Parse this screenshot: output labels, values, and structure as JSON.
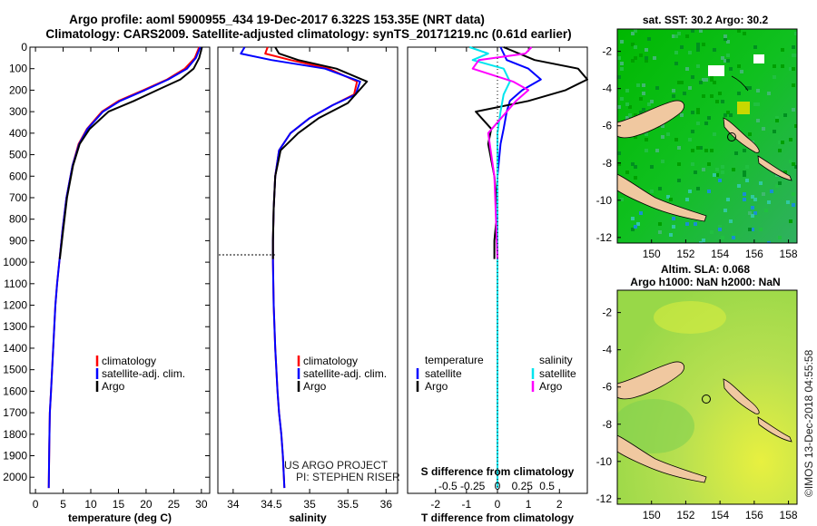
{
  "header": {
    "title_line1": "Argo profile: aoml 5900955_434 19-Dec-2017 6.322S 153.35E (NRT data)",
    "title_line2": "Climatology: CARS2009. Satellite-adjusted climatology: synTS_20171219.nc (0.61d earlier)"
  },
  "credits": {
    "project": "US ARGO PROJECT",
    "pi": "PI: STEPHEN RISER",
    "imos_stamp": "©IMOS 13-Dec-2018 04:55:58"
  },
  "colors": {
    "climatology": "#ff0000",
    "satellite": "#0000ff",
    "argo": "#000000",
    "sat_salinity": "#00e5ee",
    "argo_salinity": "#ff00ff",
    "land": "#f0c8a0",
    "sst_sea": "#00c000",
    "sla_sea": "#b0e050"
  },
  "chart_data": [
    {
      "type": "line",
      "panel": "temperature",
      "xlabel": "temperature (deg C)",
      "ylabel": "",
      "xlim": [
        -1,
        31.5
      ],
      "ylim": [
        2075,
        0
      ],
      "xticks": [
        0,
        5,
        10,
        15,
        20,
        25,
        30
      ],
      "yticks": [
        0,
        100,
        200,
        300,
        400,
        500,
        600,
        700,
        800,
        900,
        1000,
        1100,
        1200,
        1300,
        1400,
        1500,
        1600,
        1700,
        1800,
        1900,
        2000
      ],
      "legend": [
        "climatology",
        "satellite-adj. clim.",
        "Argo"
      ],
      "series": [
        {
          "name": "climatology",
          "color": "#ff0000",
          "x": [
            29.6,
            28.8,
            27.0,
            23.8,
            19.5,
            15.0,
            12.0,
            9.3,
            7.8,
            6.7,
            5.6,
            4.9,
            4.3,
            3.9,
            3.6,
            3.4,
            3.2,
            3.0,
            2.8,
            2.6,
            2.5,
            2.4
          ],
          "y": [
            0,
            50,
            100,
            150,
            200,
            250,
            300,
            380,
            450,
            550,
            700,
            850,
            1000,
            1100,
            1200,
            1300,
            1400,
            1500,
            1600,
            1700,
            1850,
            2050
          ]
        },
        {
          "name": "satellite-adj. clim.",
          "color": "#0000ff",
          "x": [
            29.8,
            29.0,
            27.4,
            24.0,
            19.8,
            15.3,
            12.2,
            9.4,
            7.9,
            6.7,
            5.6,
            4.9,
            4.3,
            3.9,
            3.6,
            3.4,
            3.2,
            3.0,
            2.8,
            2.6,
            2.5,
            2.4
          ],
          "y": [
            0,
            50,
            100,
            150,
            200,
            250,
            300,
            380,
            450,
            550,
            700,
            850,
            1000,
            1100,
            1200,
            1300,
            1400,
            1500,
            1600,
            1700,
            1850,
            2050
          ]
        },
        {
          "name": "Argo",
          "color": "#000000",
          "x": [
            30.1,
            29.6,
            28.6,
            26.2,
            22.0,
            17.8,
            13.2,
            9.8,
            8.0,
            6.8,
            5.7,
            5.0,
            4.4
          ],
          "y": [
            0,
            50,
            100,
            150,
            200,
            250,
            300,
            380,
            450,
            550,
            700,
            850,
            985
          ]
        }
      ]
    },
    {
      "type": "line",
      "panel": "salinity",
      "xlabel": "salinity",
      "ylabel": "",
      "xlim": [
        33.8,
        36.15
      ],
      "ylim": [
        2075,
        0
      ],
      "xticks": [
        34,
        34.5,
        35,
        35.5,
        36
      ],
      "legend": [
        "climatology",
        "satellite-adj. clim.",
        "Argo"
      ],
      "series": [
        {
          "name": "climatology",
          "color": "#ff0000",
          "x": [
            34.45,
            34.42,
            34.75,
            35.25,
            35.62,
            35.58,
            35.3,
            35.0,
            34.75,
            34.6,
            34.55,
            34.53,
            34.52,
            34.52,
            34.53,
            34.55,
            34.58,
            34.6,
            34.63,
            34.65,
            34.67
          ],
          "y": [
            0,
            30,
            60,
            100,
            160,
            220,
            270,
            330,
            400,
            480,
            600,
            750,
            900,
            1000,
            1200,
            1400,
            1600,
            1700,
            1800,
            1900,
            2050
          ]
        },
        {
          "name": "satellite-adj. clim.",
          "color": "#0000ff",
          "x": [
            34.15,
            34.1,
            34.5,
            35.2,
            35.66,
            35.6,
            35.3,
            35.0,
            34.75,
            34.6,
            34.55,
            34.53,
            34.52,
            34.52,
            34.53,
            34.55,
            34.58,
            34.6,
            34.63,
            34.65,
            34.67
          ],
          "y": [
            0,
            30,
            60,
            100,
            160,
            220,
            270,
            330,
            400,
            480,
            600,
            750,
            900,
            1000,
            1200,
            1400,
            1600,
            1700,
            1800,
            1900,
            2050
          ]
        },
        {
          "name": "Argo",
          "color": "#000000",
          "x": [
            34.55,
            34.6,
            34.85,
            35.35,
            35.75,
            35.65,
            35.5,
            35.12,
            34.85,
            34.62,
            34.55,
            34.53,
            34.52,
            34.52
          ],
          "y": [
            0,
            30,
            60,
            100,
            160,
            200,
            260,
            330,
            400,
            480,
            600,
            750,
            900,
            985
          ]
        }
      ]
    },
    {
      "type": "line",
      "panel": "differences",
      "xlabel": "T difference from climatology",
      "secondary_xlabel": "S difference from climatology",
      "xlim": [
        -2.9,
        2.9
      ],
      "ylim": [
        2075,
        0
      ],
      "xticks": [
        -2,
        -1,
        0,
        1,
        2
      ],
      "secondary_xticks": [
        -0.5,
        -0.25,
        0,
        0.25,
        0.5
      ],
      "legend_temperature_title": "temperature",
      "legend_salinity_title": "salinity",
      "legend": [
        "satellite",
        "Argo",
        "satellite",
        "Argo"
      ],
      "series": [
        {
          "name": "T satellite",
          "color": "#0000ff",
          "x": [
            0.1,
            0.3,
            1.0,
            1.4,
            0.8,
            0.4,
            0.3,
            0.2,
            0.1,
            0.0,
            0.0,
            0.0,
            0.0
          ],
          "y": [
            0,
            60,
            100,
            150,
            200,
            250,
            300,
            380,
            450,
            600,
            800,
            1000,
            2050
          ]
        },
        {
          "name": "T Argo",
          "color": "#000000",
          "x": [
            0.2,
            1.2,
            2.6,
            2.9,
            2.2,
            1.0,
            -0.7,
            -0.2,
            -0.3,
            -0.1,
            0.0,
            -0.1,
            -0.1
          ],
          "y": [
            0,
            60,
            100,
            150,
            200,
            250,
            300,
            380,
            450,
            600,
            750,
            900,
            985
          ]
        },
        {
          "name": "S satellite",
          "color": "#00e5ee",
          "x": [
            -0.9,
            -0.3,
            -0.8,
            0.2,
            0.4,
            0.2,
            0.1,
            0.0,
            0.0,
            0.0,
            0.0
          ],
          "y": [
            0,
            30,
            60,
            100,
            160,
            220,
            300,
            400,
            600,
            1000,
            2050
          ]
        },
        {
          "name": "S Argo",
          "color": "#ff00ff",
          "x": [
            1.1,
            0.9,
            -0.6,
            -0.8,
            0.5,
            1.0,
            0.6,
            0.3,
            -0.3,
            -0.1,
            0.0
          ],
          "y": [
            0,
            30,
            60,
            100,
            160,
            200,
            250,
            300,
            400,
            600,
            985
          ]
        }
      ]
    },
    {
      "type": "heatmap",
      "panel": "sst_map",
      "title": "sat. SST: 30.2 Argo: 30.2",
      "xlim": [
        148,
        158.5
      ],
      "ylim": [
        -12.3,
        -0.8
      ],
      "xticks": [
        150,
        152,
        154,
        156,
        158
      ],
      "yticks": [
        -2,
        -4,
        -6,
        -8,
        -10,
        -12
      ],
      "float_position": {
        "lon": 153.35,
        "lat": -6.322
      }
    },
    {
      "type": "heatmap",
      "panel": "sla_map",
      "title_line1": "Altim. SLA: 0.068",
      "title_line2": "Argo h1000: NaN h2000: NaN",
      "xlim": [
        148,
        158.5
      ],
      "ylim": [
        -12.3,
        -0.8
      ],
      "xticks": [
        150,
        152,
        154,
        156,
        158
      ],
      "yticks": [
        -2,
        -4,
        -6,
        -8,
        -10,
        -12
      ],
      "float_position": {
        "lon": 153.35,
        "lat": -6.322
      }
    }
  ]
}
